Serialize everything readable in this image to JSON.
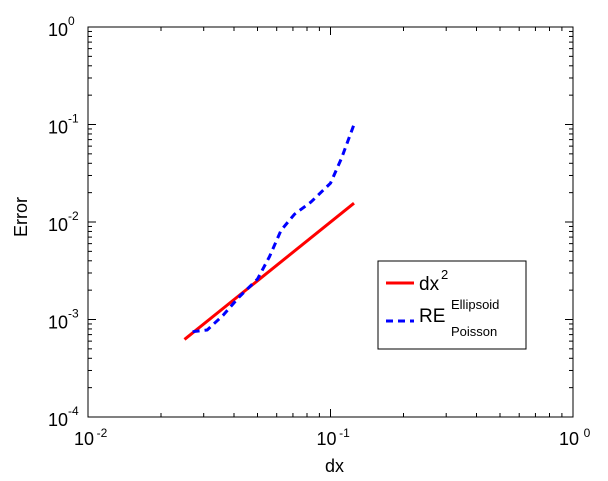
{
  "chart_data": {
    "type": "line",
    "xscale": "log",
    "yscale": "log",
    "xlabel": "dx",
    "ylabel": "Error",
    "xlim": [
      0.01,
      1
    ],
    "ylim": [
      0.0001,
      1
    ],
    "grid": false,
    "legend_position": "right",
    "x_ticks": [
      {
        "base": "10",
        "exp": "-2",
        "value": 0.01
      },
      {
        "base": "10",
        "exp": "-1",
        "value": 0.1
      },
      {
        "base": "10",
        "exp": "0",
        "value": 1
      }
    ],
    "y_ticks": [
      {
        "base": "10",
        "exp": "-4",
        "value": 0.0001
      },
      {
        "base": "10",
        "exp": "-3",
        "value": 0.001
      },
      {
        "base": "10",
        "exp": "-2",
        "value": 0.01
      },
      {
        "base": "10",
        "exp": "-1",
        "value": 0.1
      },
      {
        "base": "10",
        "exp": "0",
        "value": 1
      }
    ],
    "series": [
      {
        "name": "dx",
        "name_sup": "2",
        "color": "#ff0000",
        "style": "solid",
        "x": [
          0.025,
          0.125
        ],
        "y": [
          0.000625,
          0.0156
        ]
      },
      {
        "name": "RE",
        "name_sup": "Ellipsoid",
        "name_sub": "Poisson",
        "color": "#0000ff",
        "style": "dashed",
        "x": [
          0.027,
          0.031,
          0.036,
          0.042,
          0.05,
          0.056,
          0.0625,
          0.071,
          0.083,
          0.1,
          0.111,
          0.125
        ],
        "y": [
          0.00075,
          0.00078,
          0.0011,
          0.0017,
          0.0026,
          0.0044,
          0.0082,
          0.012,
          0.016,
          0.025,
          0.045,
          0.1
        ]
      }
    ]
  }
}
